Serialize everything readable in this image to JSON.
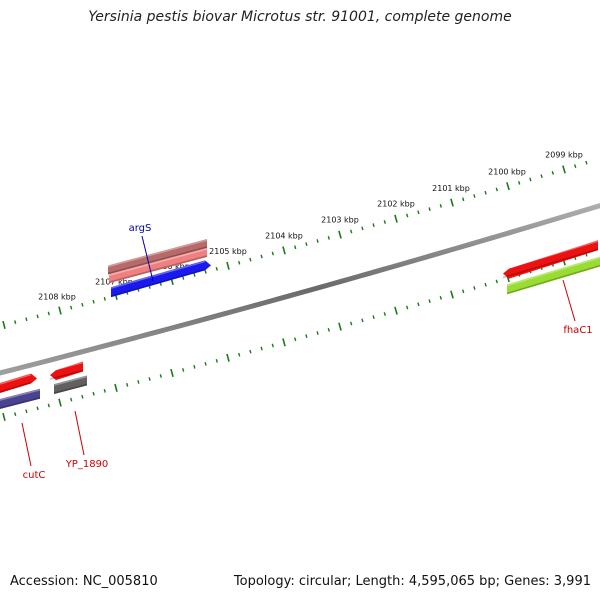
{
  "title": "Yersinia pestis biovar Microtus str. 91001, complete genome",
  "footer": {
    "accession": "Accession: NC_005810",
    "topology": "Topology: circular; Length: 4,595,065 bp; Genes: 3,991"
  },
  "kbp_ticks": [
    {
      "label": "2099 kbp"
    },
    {
      "label": "2100 kbp"
    },
    {
      "label": "2101 kbp"
    },
    {
      "label": "2102 kbp"
    },
    {
      "label": "2103 kbp"
    },
    {
      "label": "2104 kbp"
    },
    {
      "label": "2105 kbp"
    },
    {
      "label": "2106 kbp"
    },
    {
      "label": "2107 kbp"
    },
    {
      "label": "2108 kbp"
    }
  ],
  "genes": [
    {
      "name": "argS",
      "color": "#0000aa"
    },
    {
      "name": "fhaC1",
      "color": "#cc0000"
    },
    {
      "name": "cutC",
      "color": "#cc0000"
    },
    {
      "name": "YP_1890",
      "color": "#cc0000"
    }
  ],
  "colors": {
    "backbone": "#808080",
    "tick": "#1a7a1a",
    "gene_red": "#ee1111",
    "gene_pink": "#f08080",
    "gene_blue": "#1a1aee",
    "gene_green": "#99dd33",
    "gene_navy": "#4a4490",
    "gene_gray": "#606060"
  }
}
